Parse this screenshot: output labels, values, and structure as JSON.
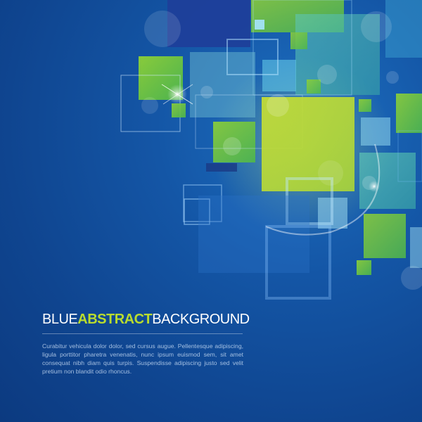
{
  "headline": {
    "word1": "BLUE",
    "word2": "ABSTRACT",
    "word3": "BACKGROUND"
  },
  "body_text": "Curabitur vehicula dolor dolor, sed cursus augue. Pellentesque adipiscing, ligula porttitor pharetra venenatis, nunc ipsum euismod sem, sit amet consequat nibh diam quis turpis. Suspendisse adipiscing justo sed velit pretium non blandit odio rhoncus.",
  "colors": {
    "background": "#1456a6",
    "accent_green": "#b9dc2e",
    "text_white": "#ffffff"
  }
}
